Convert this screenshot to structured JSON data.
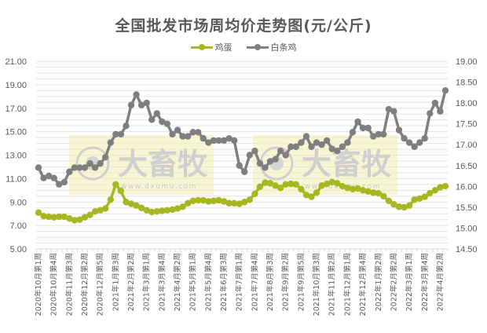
{
  "chart_data": {
    "type": "line",
    "title": "全国批发市场周均价走势图(元/公斤)",
    "xlabel": "",
    "ylabel": "",
    "legend_position": "top",
    "grid": true,
    "y_left": {
      "min": 5.0,
      "max": 21.0,
      "ticks": [
        "5.00",
        "7.00",
        "9.00",
        "11.00",
        "13.00",
        "15.00",
        "17.00",
        "19.00",
        "21.00"
      ]
    },
    "y_right": {
      "min": 14.5,
      "max": 19.0,
      "ticks": [
        "14.50",
        "15.00",
        "15.50",
        "16.00",
        "16.50",
        "17.00",
        "17.50",
        "18.00",
        "18.50",
        "19.00"
      ]
    },
    "x_tick_labels": [
      "2020年10月第1周",
      "2020年10月第4周",
      "2020年11月第3周",
      "2020年12月第2周",
      "2020年12月第5周",
      "2021年1月第3周",
      "2021年2月第2周",
      "2021年3月第1周",
      "2021年3月第4周",
      "2021年4月第2周",
      "2021年5月第1周",
      "2021年5月第4周",
      "2021年6月第3周",
      "2021年7月第1周",
      "2021年7月第4周",
      "2021年8月第3周",
      "2021年9月第2周",
      "2021年9月第5周",
      "2021年10月第3周",
      "2021年11月第2周",
      "2021年12月第1周",
      "2021年12月第4周",
      "2022年1月第2周",
      "2022年2月第2周",
      "2022年3月第1周",
      "2022年3月第4周",
      "2022年4月第2周"
    ],
    "series": [
      {
        "name": "鸡蛋",
        "axis": "left",
        "color": "#a5b821",
        "values": [
          8.1,
          7.8,
          7.75,
          7.7,
          7.75,
          7.75,
          7.6,
          7.45,
          7.5,
          7.7,
          7.9,
          8.2,
          8.3,
          8.45,
          9.2,
          10.5,
          9.95,
          9.0,
          8.85,
          8.7,
          8.5,
          8.3,
          8.15,
          8.2,
          8.25,
          8.3,
          8.35,
          8.45,
          8.6,
          8.9,
          9.1,
          9.15,
          9.15,
          9.05,
          9.1,
          9.15,
          9.05,
          8.9,
          8.9,
          8.85,
          9.0,
          9.2,
          9.7,
          10.3,
          10.65,
          10.6,
          10.4,
          10.2,
          10.5,
          10.55,
          10.5,
          10.1,
          9.6,
          9.45,
          9.8,
          10.4,
          10.55,
          10.7,
          10.6,
          10.35,
          10.2,
          10.1,
          10.15,
          10.0,
          9.9,
          9.8,
          9.75,
          9.5,
          9.1,
          8.8,
          8.6,
          8.55,
          8.7,
          9.2,
          9.3,
          9.45,
          9.75,
          10.0,
          10.25,
          10.35
        ]
      },
      {
        "name": "白条鸡",
        "axis": "right",
        "color": "#7f7f7f",
        "values": [
          16.45,
          16.2,
          16.25,
          16.2,
          16.05,
          16.1,
          16.35,
          16.45,
          16.45,
          16.45,
          16.55,
          16.45,
          16.55,
          16.7,
          17.05,
          17.25,
          17.25,
          17.45,
          17.95,
          18.2,
          17.95,
          18.0,
          17.6,
          17.75,
          17.55,
          17.5,
          17.25,
          17.35,
          17.2,
          17.2,
          17.3,
          17.3,
          17.15,
          17.05,
          17.1,
          17.1,
          17.1,
          17.15,
          17.1,
          16.5,
          16.35,
          16.75,
          16.85,
          16.55,
          16.45,
          16.6,
          16.65,
          16.85,
          16.75,
          16.95,
          16.95,
          17.05,
          17.2,
          16.95,
          17.05,
          17.0,
          17.1,
          16.9,
          16.85,
          16.95,
          17.05,
          17.3,
          17.55,
          17.4,
          17.4,
          17.2,
          17.25,
          17.25,
          17.85,
          17.8,
          17.35,
          17.15,
          17.05,
          16.95,
          17.05,
          17.15,
          17.75,
          18.0,
          17.8,
          18.3
        ]
      }
    ]
  },
  "watermark": {
    "brand": "大畜牧",
    "url": "www.dxumu.com"
  }
}
